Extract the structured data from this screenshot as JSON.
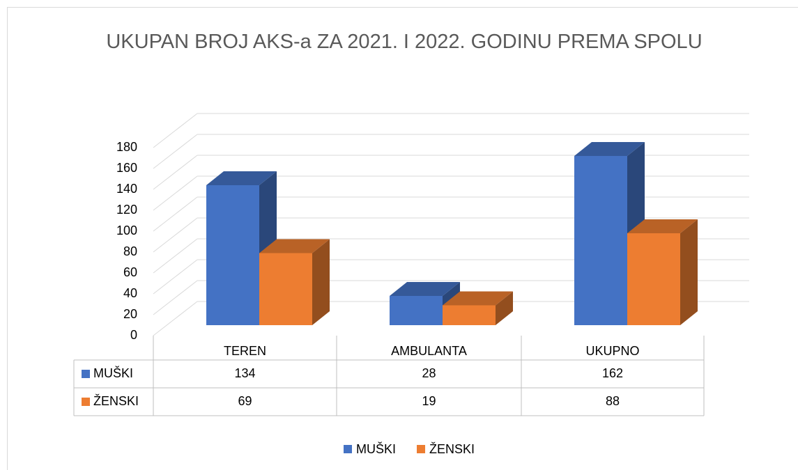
{
  "chart_data": {
    "type": "bar3d",
    "title": "UKUPAN BROJ AKS-a ZA 2021. I 2022. GODINU PREMA SPOLU",
    "categories": [
      "TEREN",
      "AMBULANTA",
      "UKUPNO"
    ],
    "series": [
      {
        "name": "MUŠKI",
        "color": "#4472c4",
        "values": [
          134,
          28,
          162
        ]
      },
      {
        "name": "ŽENSKI",
        "color": "#ed7d31",
        "values": [
          69,
          19,
          88
        ]
      }
    ],
    "ylim": [
      0,
      180
    ],
    "yticks": [
      0,
      20,
      40,
      60,
      80,
      100,
      120,
      140,
      160,
      180
    ],
    "grid": true,
    "data_table": true,
    "legend": "bottom"
  }
}
